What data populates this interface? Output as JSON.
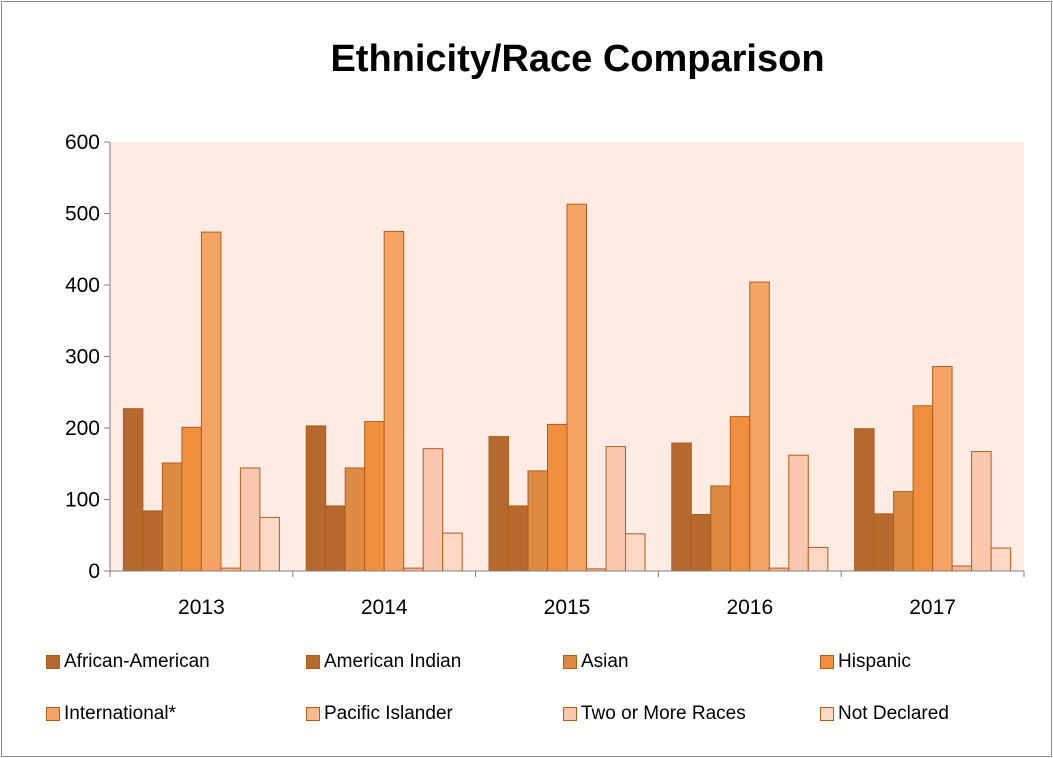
{
  "chart_data": {
    "type": "bar",
    "title": "Ethnicity/Race Comparison",
    "xlabel": "",
    "ylabel": "",
    "ylim": [
      0,
      600
    ],
    "yticks": [
      "0",
      "100",
      "200",
      "300",
      "400",
      "500",
      "600"
    ],
    "categories": [
      "2013",
      "2014",
      "2015",
      "2016",
      "2017"
    ],
    "legend_position": "bottom",
    "grid": false,
    "series": [
      {
        "name": "African-American",
        "color": "#b5692f",
        "values": [
          227,
          203,
          188,
          179,
          199
        ]
      },
      {
        "name": "American Indian",
        "color": "#b86a2e",
        "values": [
          84,
          91,
          91,
          79,
          80
        ]
      },
      {
        "name": "Asian",
        "color": "#dd8a43",
        "values": [
          151,
          144,
          140,
          119,
          111
        ]
      },
      {
        "name": "Hispanic",
        "color": "#f08f3e",
        "values": [
          201,
          209,
          205,
          216,
          231
        ]
      },
      {
        "name": "International*",
        "color": "#f6a466",
        "values": [
          474,
          475,
          513,
          404,
          286
        ]
      },
      {
        "name": "Pacific Islander",
        "color": "#fab890",
        "values": [
          4,
          4,
          3,
          4,
          7
        ]
      },
      {
        "name": "Two or More Races",
        "color": "#fac8ae",
        "values": [
          144,
          171,
          174,
          162,
          167
        ]
      },
      {
        "name": "Not Declared",
        "color": "#fcd8c5",
        "values": [
          75,
          53,
          52,
          33,
          32
        ]
      }
    ]
  }
}
